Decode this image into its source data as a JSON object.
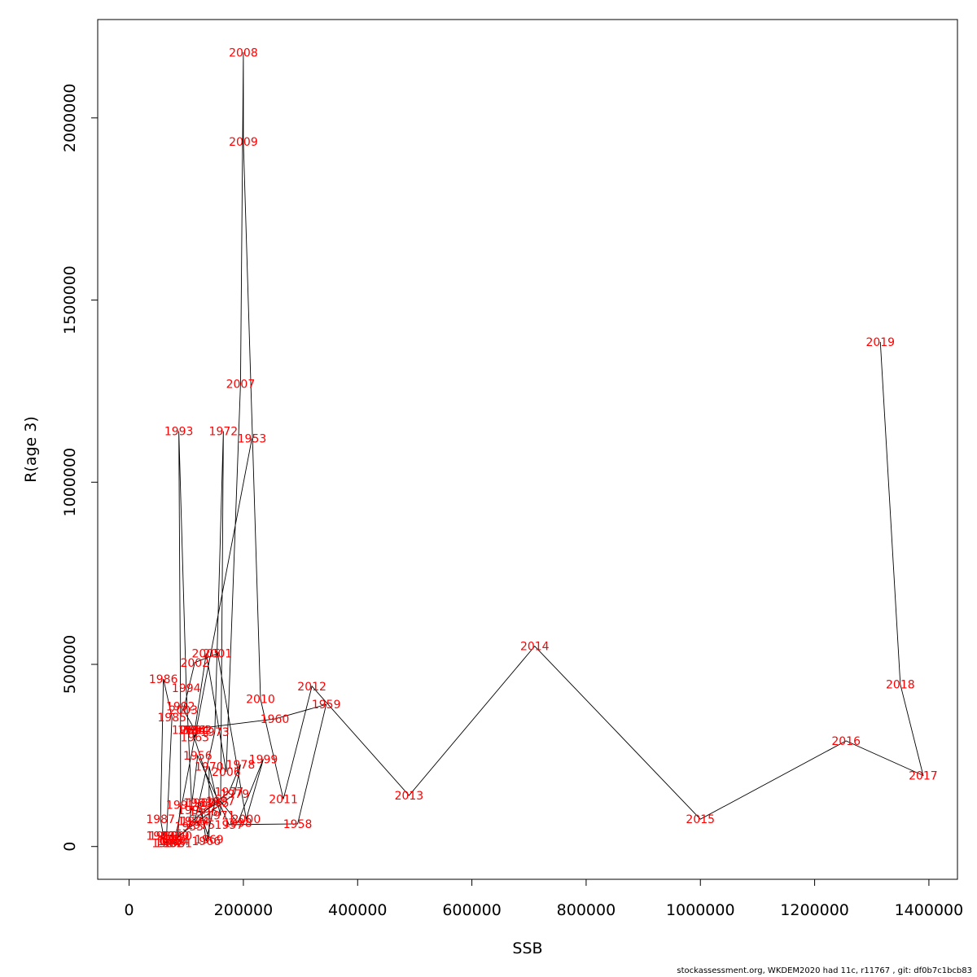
{
  "chart_data": {
    "type": "line",
    "title": "",
    "xlabel": "SSB",
    "ylabel": "R(age 3)",
    "xlim": [
      -55000,
      1450000
    ],
    "ylim": [
      -90000,
      2270000
    ],
    "xticks": [
      0,
      200000,
      400000,
      600000,
      800000,
      1000000,
      1200000,
      1400000
    ],
    "xtick_labels": [
      "0",
      "200000",
      "400000",
      "600000",
      "800000",
      "1000000",
      "1200000",
      "1400000"
    ],
    "yticks": [
      0,
      500000,
      1000000,
      1500000,
      2000000
    ],
    "ytick_labels": [
      "0",
      "500000",
      "1000000",
      "1500000",
      "2000000"
    ],
    "label_color": "#ff0000",
    "line_color": "#000000",
    "points": [
      {
        "year": "1953",
        "x": 215000,
        "y": 1120000
      },
      {
        "year": "1954",
        "x": 80000,
        "y": 15000
      },
      {
        "year": "1955",
        "x": 105000,
        "y": 55000
      },
      {
        "year": "1956",
        "x": 120000,
        "y": 250000
      },
      {
        "year": "1957",
        "x": 175000,
        "y": 60000
      },
      {
        "year": "1958",
        "x": 295000,
        "y": 62000
      },
      {
        "year": "1959",
        "x": 345000,
        "y": 390000
      },
      {
        "year": "1960",
        "x": 255000,
        "y": 350000
      },
      {
        "year": "1961",
        "x": 100000,
        "y": 320000
      },
      {
        "year": "1962",
        "x": 120000,
        "y": 320000
      },
      {
        "year": "1963",
        "x": 115000,
        "y": 300000
      },
      {
        "year": "1964",
        "x": 110000,
        "y": 320000
      },
      {
        "year": "1965",
        "x": 150000,
        "y": 120000
      },
      {
        "year": "1966",
        "x": 135000,
        "y": 15000
      },
      {
        "year": "1967",
        "x": 125000,
        "y": 120000
      },
      {
        "year": "1968",
        "x": 120000,
        "y": 120000
      },
      {
        "year": "1969",
        "x": 140000,
        "y": 20000
      },
      {
        "year": "1970",
        "x": 140000,
        "y": 220000
      },
      {
        "year": "1971",
        "x": 160000,
        "y": 85000
      },
      {
        "year": "1972",
        "x": 165000,
        "y": 1140000
      },
      {
        "year": "1973",
        "x": 150000,
        "y": 315000
      },
      {
        "year": "1974",
        "x": 115000,
        "y": 70000
      },
      {
        "year": "1975",
        "x": 125000,
        "y": 60000
      },
      {
        "year": "1976",
        "x": 110000,
        "y": 70000
      },
      {
        "year": "1977",
        "x": 175000,
        "y": 150000
      },
      {
        "year": "1978",
        "x": 195000,
        "y": 225000
      },
      {
        "year": "1979",
        "x": 185000,
        "y": 145000
      },
      {
        "year": "1980",
        "x": 75000,
        "y": 15000
      },
      {
        "year": "1981",
        "x": 85000,
        "y": 10000
      },
      {
        "year": "1982",
        "x": 70000,
        "y": 10000
      },
      {
        "year": "1983",
        "x": 55000,
        "y": 30000
      },
      {
        "year": "1984",
        "x": 65000,
        "y": 10000
      },
      {
        "year": "1985",
        "x": 75000,
        "y": 355000
      },
      {
        "year": "1986",
        "x": 60000,
        "y": 460000
      },
      {
        "year": "1987",
        "x": 55000,
        "y": 75000
      },
      {
        "year": "1988",
        "x": 60000,
        "y": 30000
      },
      {
        "year": "1989",
        "x": 80000,
        "y": 30000
      },
      {
        "year": "1990",
        "x": 85000,
        "y": 30000
      },
      {
        "year": "1991",
        "x": 90000,
        "y": 115000
      },
      {
        "year": "1992",
        "x": 90000,
        "y": 385000
      },
      {
        "year": "1993",
        "x": 87000,
        "y": 1140000
      },
      {
        "year": "1994",
        "x": 100000,
        "y": 435000
      },
      {
        "year": "1995",
        "x": 110000,
        "y": 100000
      },
      {
        "year": "1996",
        "x": 130000,
        "y": 95000
      },
      {
        "year": "1997",
        "x": 160000,
        "y": 125000
      },
      {
        "year": "1998",
        "x": 190000,
        "y": 65000
      },
      {
        "year": "1999",
        "x": 235000,
        "y": 240000
      },
      {
        "year": "2000",
        "x": 205000,
        "y": 75000
      },
      {
        "year": "2001",
        "x": 155000,
        "y": 530000
      },
      {
        "year": "2002",
        "x": 115000,
        "y": 505000
      },
      {
        "year": "2003",
        "x": 95000,
        "y": 375000
      },
      {
        "year": "2004",
        "x": 115000,
        "y": 320000
      },
      {
        "year": "2005",
        "x": 135000,
        "y": 530000
      },
      {
        "year": "2006",
        "x": 170000,
        "y": 205000
      },
      {
        "year": "2007",
        "x": 195000,
        "y": 1270000
      },
      {
        "year": "2008",
        "x": 200000,
        "y": 2180000
      },
      {
        "year": "2009",
        "x": 200000,
        "y": 1935000
      },
      {
        "year": "2010",
        "x": 230000,
        "y": 405000
      },
      {
        "year": "2011",
        "x": 270000,
        "y": 130000
      },
      {
        "year": "2012",
        "x": 320000,
        "y": 440000
      },
      {
        "year": "2013",
        "x": 490000,
        "y": 140000
      },
      {
        "year": "2014",
        "x": 710000,
        "y": 550000
      },
      {
        "year": "2015",
        "x": 1000000,
        "y": 75000
      },
      {
        "year": "2016",
        "x": 1255000,
        "y": 290000
      },
      {
        "year": "2017",
        "x": 1390000,
        "y": 195000
      },
      {
        "year": "2018",
        "x": 1350000,
        "y": 445000
      },
      {
        "year": "2019",
        "x": 1315000,
        "y": 1385000
      }
    ]
  },
  "footer": "stockassessment.org, WKDEM2020  had  11c, r11767 , git: df0b7c1bcb83"
}
